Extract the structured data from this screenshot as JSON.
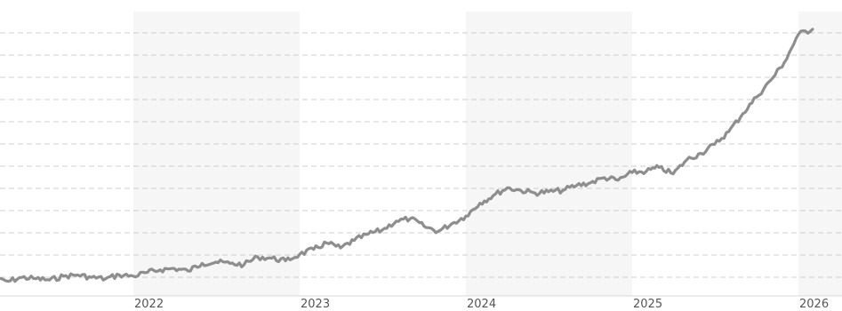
{
  "chart_data": {
    "type": "line",
    "title": "",
    "xlabel": "",
    "ylabel": "",
    "x_tick_labels": [
      "2022",
      "2023",
      "2024",
      "2025",
      "2026"
    ],
    "y_tick_labels_shown": false,
    "grid": "horizontal dashed",
    "shaded_year_bands": [
      "2022",
      "2024",
      "2026"
    ],
    "line_color": "#8e8e8e",
    "series": [
      {
        "x": [
          "2021-03-01",
          "2021-04-01",
          "2021-05-01",
          "2021-06-01",
          "2021-07-01",
          "2021-08-01",
          "2021-09-01",
          "2021-10-01",
          "2021-11-01",
          "2021-12-01",
          "2022-01-01",
          "2022-02-01",
          "2022-03-01",
          "2022-04-01",
          "2022-05-01",
          "2022-06-01",
          "2022-07-01",
          "2022-08-01",
          "2022-09-01",
          "2022-10-01",
          "2022-11-01",
          "2022-12-01",
          "2023-01-01",
          "2023-02-01",
          "2023-03-01",
          "2023-04-01",
          "2023-05-01",
          "2023-06-01",
          "2023-07-01",
          "2023-08-01",
          "2023-09-01",
          "2023-10-01",
          "2023-11-01",
          "2023-12-01",
          "2024-01-01",
          "2024-02-01",
          "2024-03-01",
          "2024-04-01",
          "2024-05-01",
          "2024-06-01",
          "2024-07-01",
          "2024-08-01",
          "2024-09-01",
          "2024-10-01",
          "2024-11-01",
          "2024-12-01",
          "2025-01-01",
          "2025-02-01",
          "2025-03-01",
          "2025-04-01",
          "2025-05-01",
          "2025-06-01",
          "2025-07-01",
          "2025-08-01",
          "2025-09-01",
          "2025-10-01",
          "2025-11-01",
          "2025-12-01",
          "2026-01-01",
          "2026-02-01"
        ],
        "values": [
          2,
          1,
          4,
          3,
          2,
          5,
          6,
          4,
          3,
          6,
          5,
          8,
          10,
          11,
          9,
          15,
          16,
          15,
          14,
          20,
          19,
          17,
          22,
          26,
          31,
          27,
          33,
          38,
          41,
          48,
          50,
          44,
          40,
          46,
          52,
          62,
          68,
          74,
          72,
          70,
          71,
          72,
          76,
          78,
          82,
          80,
          86,
          87,
          90,
          85,
          96,
          101,
          108,
          118,
          132,
          145,
          158,
          172,
          194,
          198
        ]
      }
    ]
  }
}
